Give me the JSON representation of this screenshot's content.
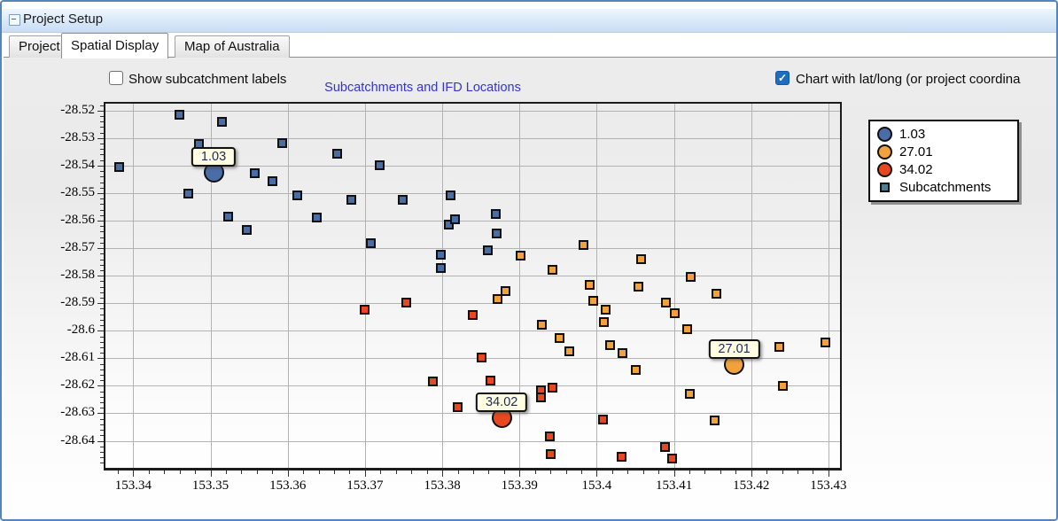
{
  "window": {
    "title": "Project Setup"
  },
  "tabs": {
    "items": [
      {
        "label": "Project",
        "active": false
      },
      {
        "label": "Spatial Display",
        "active": true
      },
      {
        "label": "Map of Australia",
        "active": false
      }
    ]
  },
  "controls": {
    "show_labels": {
      "label": "Show subcatchment labels",
      "checked": false
    },
    "latlong": {
      "label": "Chart with lat/long (or project coordina",
      "checked": true,
      "check_glyph": "✓"
    }
  },
  "colors": {
    "blue": "#4a6da8",
    "orange": "#f2a23c",
    "red": "#e8481f",
    "legend_square": "#4a7e96",
    "title_text": "#3434d0",
    "grid": "#b3b3b3",
    "checkbox_checked": "#1b6ec2"
  },
  "chart_data": {
    "type": "scatter",
    "title": "Subcatchments and IFD Locations",
    "xlabel": "",
    "ylabel": "",
    "grid": true,
    "legend_position": "top-right",
    "xlim": [
      153.3364,
      153.4315
    ],
    "ylim": [
      -28.5175,
      -28.6498
    ],
    "x_ticks": [
      153.34,
      153.35,
      153.36,
      153.37,
      153.38,
      153.39,
      153.4,
      153.41,
      153.42,
      153.43
    ],
    "y_ticks": [
      -28.52,
      -28.53,
      -28.54,
      -28.55,
      -28.56,
      -28.57,
      -28.58,
      -28.59,
      -28.6,
      -28.61,
      -28.62,
      -28.63,
      -28.64
    ],
    "minor_tick_step": 0.002,
    "legend": [
      {
        "label": "1.03",
        "marker": "circle",
        "color_key": "blue"
      },
      {
        "label": "27.01",
        "marker": "circle",
        "color_key": "orange"
      },
      {
        "label": "34.02",
        "marker": "circle",
        "color_key": "red"
      },
      {
        "label": "Subcatchments",
        "marker": "square",
        "color_key": "legend_square"
      }
    ],
    "ifd_locations": [
      {
        "label": "1.03",
        "lon": 153.3504,
        "lat": -28.5424,
        "color_key": "blue"
      },
      {
        "label": "27.01",
        "lon": 153.4178,
        "lat": -28.6122,
        "color_key": "orange"
      },
      {
        "label": "34.02",
        "lon": 153.3877,
        "lat": -28.6315,
        "color_key": "red"
      }
    ],
    "series": [
      {
        "name": "subcatchments-blue",
        "marker": "square",
        "color_key": "blue",
        "points": [
          [
            153.3382,
            -28.5405
          ],
          [
            153.346,
            -28.5216
          ],
          [
            153.3471,
            -28.5503
          ],
          [
            153.3485,
            -28.5323
          ],
          [
            153.3515,
            -28.5241
          ],
          [
            153.3523,
            -28.5585
          ],
          [
            153.3547,
            -28.5633
          ],
          [
            153.3557,
            -28.5427
          ],
          [
            153.358,
            -28.5456
          ],
          [
            153.3593,
            -28.5317
          ],
          [
            153.3612,
            -28.5509
          ],
          [
            153.3638,
            -28.5588
          ],
          [
            153.3664,
            -28.5358
          ],
          [
            153.3682,
            -28.5525
          ],
          [
            153.3708,
            -28.5683
          ],
          [
            153.3719,
            -28.5399
          ],
          [
            153.3749,
            -28.5525
          ],
          [
            153.3798,
            -28.5724
          ],
          [
            153.3798,
            -28.5772
          ],
          [
            153.3808,
            -28.5614
          ],
          [
            153.3811,
            -28.5509
          ],
          [
            153.3816,
            -28.5595
          ],
          [
            153.3859,
            -28.5708
          ],
          [
            153.3869,
            -28.5576
          ],
          [
            153.387,
            -28.5648
          ]
        ]
      },
      {
        "name": "subcatchments-orange",
        "marker": "square",
        "color_key": "orange",
        "points": [
          [
            153.3872,
            -28.5885
          ],
          [
            153.3882,
            -28.5857
          ],
          [
            153.3901,
            -28.5727
          ],
          [
            153.3929,
            -28.5977
          ],
          [
            153.3943,
            -28.5778
          ],
          [
            153.3952,
            -28.6027
          ],
          [
            153.3965,
            -28.6075
          ],
          [
            153.3983,
            -28.5689
          ],
          [
            153.3991,
            -28.5832
          ],
          [
            153.3995,
            -28.5892
          ],
          [
            153.4012,
            -28.5923
          ],
          [
            153.4009,
            -28.5967
          ],
          [
            153.4017,
            -28.6053
          ],
          [
            153.4033,
            -28.6081
          ],
          [
            153.4051,
            -28.6141
          ],
          [
            153.4054,
            -28.5841
          ],
          [
            153.4057,
            -28.574
          ],
          [
            153.409,
            -28.5898
          ],
          [
            153.4101,
            -28.5936
          ],
          [
            153.4117,
            -28.5993
          ],
          [
            153.4122,
            -28.5803
          ],
          [
            153.4121,
            -28.6229
          ],
          [
            153.4153,
            -28.6327
          ],
          [
            153.4155,
            -28.5866
          ],
          [
            153.4236,
            -28.6059
          ],
          [
            153.4241,
            -28.6201
          ],
          [
            153.4296,
            -28.6043
          ]
        ]
      },
      {
        "name": "subcatchments-red",
        "marker": "square",
        "color_key": "red",
        "points": [
          [
            153.37,
            -28.5923
          ],
          [
            153.3753,
            -28.5898
          ],
          [
            153.3788,
            -28.6185
          ],
          [
            153.382,
            -28.6277
          ],
          [
            153.384,
            -28.5942
          ],
          [
            153.3851,
            -28.6097
          ],
          [
            153.3862,
            -28.6182
          ],
          [
            153.3928,
            -28.6217
          ],
          [
            153.3928,
            -28.6242
          ],
          [
            153.3943,
            -28.6207
          ],
          [
            153.3939,
            -28.6384
          ],
          [
            153.394,
            -28.6447
          ],
          [
            153.4008,
            -28.6321
          ],
          [
            153.4032,
            -28.6457
          ],
          [
            153.4089,
            -28.6422
          ],
          [
            153.4098,
            -28.6463
          ]
        ]
      }
    ]
  }
}
